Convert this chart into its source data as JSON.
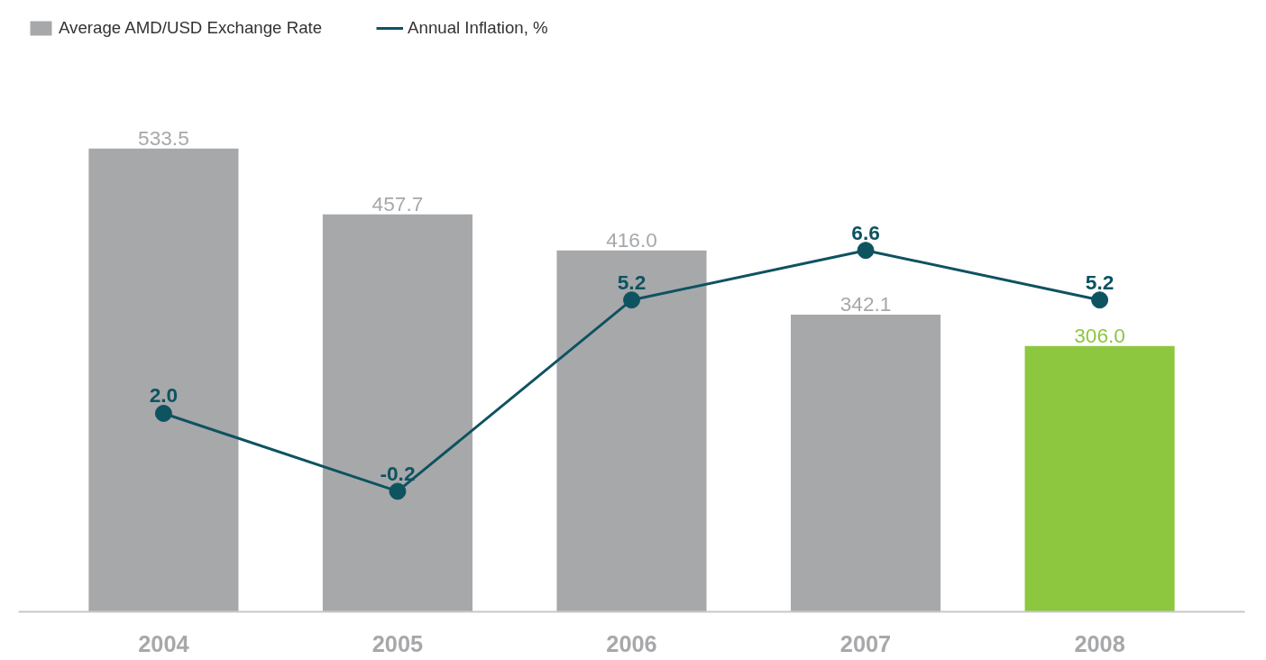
{
  "chart_data": {
    "type": "bar",
    "categories": [
      "2004",
      "2005",
      "2006",
      "2007",
      "2008"
    ],
    "series": [
      {
        "name": "Average AMD/USD Exchange Rate",
        "values": [
          533.5,
          457.7,
          416.0,
          342.1,
          306.0
        ],
        "value_labels": [
          "533.5",
          "457.7",
          "416.0",
          "342.1",
          "306.0"
        ],
        "colors": [
          "#a7a8aa",
          "#a7a8aa",
          "#a7a8aa",
          "#a7a8aa",
          "#8dc63f"
        ]
      },
      {
        "name": "Annual Inflation, %",
        "type": "line",
        "axis": "y2",
        "color": "#0d5360",
        "values": [
          2.0,
          -0.2,
          5.2,
          6.6,
          5.2
        ],
        "value_labels": [
          "2.0",
          "-0.2",
          "5.2",
          "6.6",
          "5.2"
        ]
      }
    ],
    "legend": "top left",
    "tick_labels": "x",
    "marker": "circle",
    "line_style": "solid"
  }
}
